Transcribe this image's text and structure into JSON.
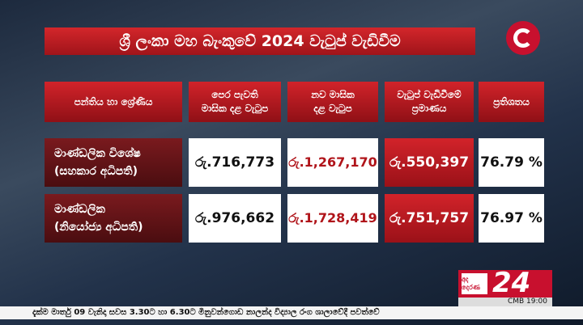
{
  "header": {
    "title": "ශ්‍රී ලංකා මහ බැංකුවේ 2024 වැටුප් වැඩිවීම"
  },
  "table": {
    "columns": [
      [
        "පන්තිය හා ශ්‍රේණිය"
      ],
      [
        "පෙර පැවති",
        "මාසික දළ වැටුප"
      ],
      [
        "නව මාසික",
        "දළ වැටුප"
      ],
      [
        "වැටුප් වැඩිවීමේ",
        "ප්‍රමාණය"
      ],
      [
        "ප්‍රතිශතය"
      ]
    ],
    "rows": [
      [
        [
          "මාණ්ඩලික විශේෂ",
          "(සහකාර අධිපති)"
        ],
        "රු.716,773",
        "රු.1,267,170",
        "රු.550,397",
        "76.79 %"
      ],
      [
        [
          "මාණ්ඩලික",
          "(නියෝජ්‍ය අධිපති)"
        ],
        "රු.976,662",
        "රු.1,728,419",
        "රු.751,757",
        "76.97 %"
      ]
    ]
  },
  "broadcast": {
    "channel": "අද දෙරණ",
    "logo": "24",
    "clock": "CMB 19:00",
    "ticker": "දැක්ම මාර්තු 09 වැනිදා සවස 3.30ට හා 6.30ට මිනුවන්ගොඩ නාලන්ද විද්‍යාල රංග ශාලාවේදී පවත්වේ"
  }
}
